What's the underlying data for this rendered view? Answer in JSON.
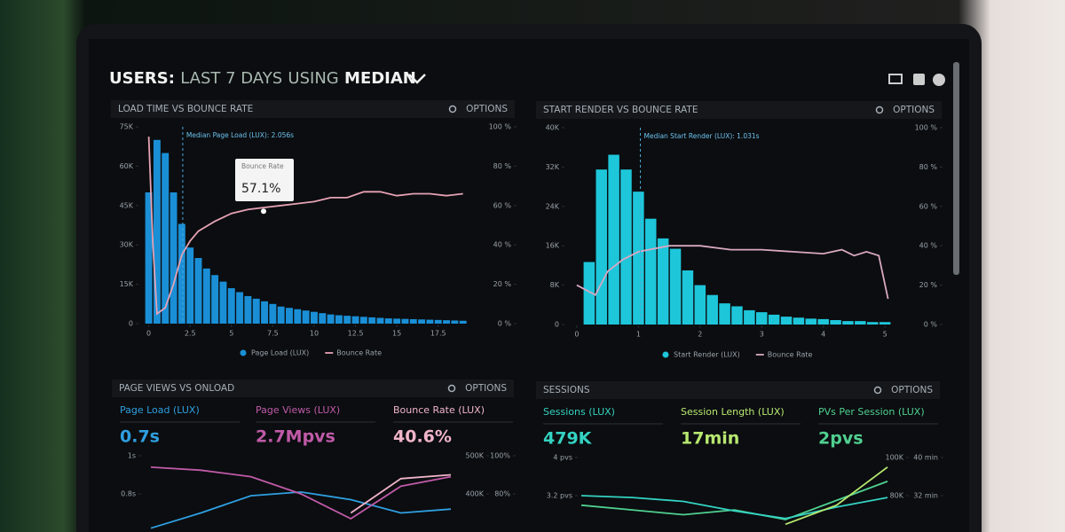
{
  "header": {
    "title": [
      "USERS:",
      "LAST 7 DAYS",
      "USING",
      "MEDIAN"
    ]
  },
  "panels": [
    {
      "title": "LOAD TIME VS BOUNCE RATE",
      "options": "OPTIONS",
      "chart": {
        "type": "histogram",
        "bins": [
          -0.25,
          0.25,
          0.75,
          1.25,
          1.75,
          2.25,
          2.75,
          3.25,
          3.75,
          4.25,
          4.75,
          5.25,
          5.75,
          6.25,
          6.75,
          7.25,
          7.75,
          8.25,
          8.75,
          9.25,
          9.75,
          10.25,
          10.75,
          11.25,
          11.75,
          12.25,
          12.75,
          13.25,
          13.75,
          14.25,
          14.75,
          15.25,
          15.75,
          16.25,
          16.75,
          17.25,
          17.75,
          18.25,
          18.75,
          19.25
        ],
        "xlim": [
          -0.3,
          19.5
        ],
        "xticks": [
          0,
          2.5,
          5,
          7.5,
          10,
          12.5,
          15,
          17.5
        ],
        "ylim": [
          0,
          75000
        ],
        "yticks": [
          0,
          {
            "value": 15000,
            "label": "15K"
          },
          {
            "value": 30000,
            "label": "30K"
          },
          {
            "value": 45000,
            "label": "45K"
          },
          {
            "value": 60000,
            "label": "60K"
          },
          {
            "value": 75000,
            "label": "75K"
          }
        ],
        "y2lim": [
          0,
          100
        ],
        "y2ticks": [
          {
            "value": 0,
            "label": "0 %"
          },
          {
            "value": 20,
            "label": "20 %"
          },
          {
            "value": 40,
            "label": "40 %"
          },
          {
            "value": 60,
            "label": "60 %"
          },
          {
            "value": 80,
            "label": "80 %"
          },
          {
            "value": 100,
            "label": "100 %"
          }
        ],
        "series": [
          {
            "name": "Page Load (LUX)",
            "color": "#1a8fd6",
            "values": [
              50000,
              70000,
              65000,
              50000,
              38000,
              29000,
              25000,
              21000,
              18500,
              16000,
              13500,
              12000,
              10500,
              9500,
              8500,
              7500,
              6500,
              6000,
              5500,
              5000,
              4500,
              4000,
              3500,
              3200,
              3000,
              2800,
              2600,
              2400,
              2200,
              2000,
              1900,
              1800,
              1700,
              1600,
              1500,
              1400,
              1300,
              1200,
              1100
            ]
          },
          {
            "name": "Bounce Rate",
            "color": "#e6a2b4",
            "type": "line",
            "axis": "y2",
            "x": [
              0,
              0.25,
              0.5,
              1,
              1.5,
              2,
              2.5,
              3,
              4,
              5,
              6,
              7,
              8,
              9,
              10,
              11,
              12,
              13,
              14,
              15,
              16,
              17,
              18,
              19
            ],
            "values": [
              95,
              40,
              5,
              8,
              20,
              35,
              42,
              47,
              52,
              56,
              58,
              59,
              60,
              61,
              62,
              64,
              64,
              67,
              67,
              65,
              66,
              66,
              65,
              66
            ]
          }
        ],
        "median": {
          "value": 2.056,
          "label": "Median Page Load (LUX): 2.056s"
        },
        "tooltip": {
          "title": "Bounce Rate",
          "value": 57.1,
          "label": "57.1%"
        }
      }
    },
    {
      "title": "START RENDER VS BOUNCE RATE",
      "options": "OPTIONS",
      "chart": {
        "type": "histogram",
        "bins": [
          0.1,
          0.3,
          0.5,
          0.7,
          0.9,
          1.1,
          1.3,
          1.5,
          1.7,
          1.9,
          2.1,
          2.3,
          2.5,
          2.7,
          2.9,
          3.1,
          3.3,
          3.5,
          3.7,
          3.9,
          4.1,
          4.3,
          4.5,
          4.7,
          4.9,
          5.1
        ],
        "xlim": [
          -0.1,
          5.2
        ],
        "xticks": [
          0,
          1,
          2,
          3,
          4,
          5
        ],
        "ylim": [
          0,
          40000
        ],
        "yticks": [
          0,
          {
            "value": 8000,
            "label": "8K"
          },
          {
            "value": 16000,
            "label": "16K"
          },
          {
            "value": 24000,
            "label": "24K"
          },
          {
            "value": 32000,
            "label": "32K"
          },
          {
            "value": 40000,
            "label": "40K"
          }
        ],
        "y2lim": [
          0,
          100
        ],
        "y2ticks": [
          {
            "value": 0,
            "label": "0 %"
          },
          {
            "value": 20,
            "label": "20 %"
          },
          {
            "value": 40,
            "label": "40 %"
          },
          {
            "value": 60,
            "label": "60 %"
          },
          {
            "value": 80,
            "label": "80 %"
          },
          {
            "value": 100,
            "label": "100 %"
          }
        ],
        "series": [
          {
            "name": "Start Render (LUX)",
            "color": "#1ec6da",
            "values": [
              12700,
              31500,
              34500,
              31500,
              27000,
              21500,
              17500,
              15400,
              11000,
              8000,
              6000,
              4300,
              3700,
              2900,
              2500,
              2000,
              1600,
              1400,
              1200,
              1100,
              900,
              700,
              700,
              500,
              500
            ]
          },
          {
            "name": "Bounce Rate",
            "color": "#d9a8c2",
            "type": "line",
            "axis": "y2",
            "x": [
              0,
              0.3,
              0.5,
              0.75,
              1,
              1.5,
              2,
              2.5,
              3,
              3.5,
              4,
              4.3,
              4.5,
              4.7,
              4.9,
              5.05
            ],
            "values": [
              20,
              15,
              27,
              33,
              37,
              40,
              40,
              38,
              38,
              37,
              36,
              38,
              35,
              37,
              35,
              13
            ]
          }
        ],
        "median": {
          "value": 1.031,
          "label": "Median Start Render (LUX): 1.031s"
        }
      }
    },
    {
      "title": "PAGE VIEWS VS ONLOAD",
      "options": "OPTIONS",
      "metrics": [
        {
          "label": "Page Load (LUX)",
          "value": "0.7s",
          "color": "#2f9fe0"
        },
        {
          "label": "Page Views (LUX)",
          "value": "2.7Mpvs",
          "color": "#c05aa8"
        },
        {
          "label": "Bounce Rate (LUX)",
          "value": "40.6%",
          "color": "#f0b4c8"
        }
      ],
      "chart": {
        "type": "line",
        "ylim": [
          0.6,
          1
        ],
        "yticks": [
          {
            "value": 1,
            "label": "1s"
          },
          {
            "value": 0.8,
            "label": "0.8s"
          }
        ],
        "y2lim": [
          300000,
          500000
        ],
        "y2ticks": [
          {
            "value": 500000,
            "label": "500K"
          },
          {
            "value": 400000,
            "label": "400K"
          }
        ],
        "y3lim": [
          60,
          100
        ],
        "y3ticks": [
          {
            "value": 100,
            "label": "100%"
          },
          {
            "value": 80,
            "label": "80%"
          }
        ],
        "series": [
          {
            "color": "#2f9fe0",
            "values": [
              0.62,
              0.7,
              0.79,
              0.81,
              0.77,
              0.7,
              0.72
            ]
          },
          {
            "color": "#c05aa8",
            "axis": "y2",
            "values": [
              470000,
              462000,
              445000,
              400000,
              335000,
              420000,
              445000
            ]
          },
          {
            "color": "#f0b4c8",
            "axis": "y3",
            "values": [
              null,
              null,
              null,
              null,
              70,
              88,
              90
            ]
          }
        ]
      }
    },
    {
      "title": "SESSIONS",
      "options": "OPTIONS",
      "metrics": [
        {
          "label": "Sessions (LUX)",
          "value": "479K",
          "color": "#34d2c2"
        },
        {
          "label": "Session Length (LUX)",
          "value": "17min",
          "color": "#b8e870"
        },
        {
          "label": "PVs Per Session (LUX)",
          "value": "2pvs",
          "color": "#50d090"
        }
      ],
      "chart": {
        "type": "line",
        "ylim": [
          2.4,
          4
        ],
        "yticks": [
          {
            "value": 4,
            "label": "4 pvs"
          },
          {
            "value": 3.2,
            "label": "3.2 pvs"
          }
        ],
        "y2lim": [
          60000,
          100000
        ],
        "y2ticks": [
          {
            "value": 100000,
            "label": "100K"
          },
          {
            "value": 80000,
            "label": "80K"
          }
        ],
        "y3lim": [
          24,
          40
        ],
        "y3ticks": [
          {
            "value": 40,
            "label": "40 min"
          },
          {
            "value": 32,
            "label": "32 min"
          }
        ],
        "series": [
          {
            "color": "#50d090",
            "values": [
              3.0,
              2.9,
              2.8,
              2.9,
              2.7,
              3.1,
              3.5
            ]
          },
          {
            "color": "#34d2c2",
            "axis": "y2",
            "values": [
              80000,
              79000,
              77000,
              72000,
              68000,
              74000,
              79000
            ]
          },
          {
            "color": "#b8e870",
            "axis": "y3",
            "values": [
              null,
              null,
              null,
              null,
              26,
              30,
              38
            ]
          }
        ]
      }
    }
  ]
}
